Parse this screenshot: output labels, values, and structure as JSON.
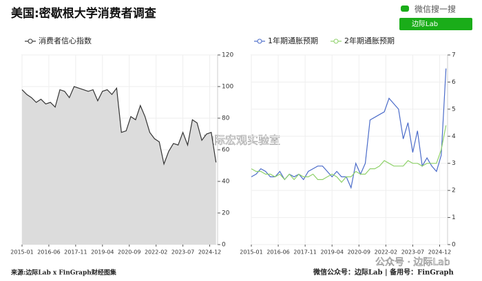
{
  "header": {
    "title": "美国:密歇根大学消费者调查",
    "search_brand": "微信搜一搜",
    "search_box": "边际Lab"
  },
  "chart_data": [
    {
      "type": "area",
      "series": [
        {
          "name": "消费者信心指数",
          "color": "#333333",
          "fill": "#dcdcdc",
          "x": [
            "2015-01",
            "2015-04",
            "2015-07",
            "2015-10",
            "2016-01",
            "2016-04",
            "2016-07",
            "2016-10",
            "2017-01",
            "2017-04",
            "2017-07",
            "2017-10",
            "2018-01",
            "2018-04",
            "2018-07",
            "2018-10",
            "2019-01",
            "2019-04",
            "2019-07",
            "2019-10",
            "2020-01",
            "2020-04",
            "2020-07",
            "2020-10",
            "2021-01",
            "2021-04",
            "2021-07",
            "2021-10",
            "2022-01",
            "2022-04",
            "2022-07",
            "2022-10",
            "2023-01",
            "2023-04",
            "2023-07",
            "2023-10",
            "2024-01",
            "2024-04",
            "2024-07",
            "2024-10",
            "2025-01",
            "2025-04"
          ],
          "values": [
            98,
            95,
            93,
            90,
            92,
            89,
            90,
            87,
            98,
            97,
            93,
            100,
            99,
            98,
            97,
            98,
            91,
            97,
            98,
            95,
            99,
            71,
            72,
            81,
            79,
            88,
            81,
            71,
            67,
            65,
            51,
            59,
            64,
            63,
            71,
            63,
            79,
            77,
            66,
            70,
            71,
            52
          ]
        }
      ],
      "xlim": [
        "2015-01",
        "2025-05"
      ],
      "xticks": [
        "2015-01",
        "2016-06",
        "2017-11",
        "2019-04",
        "2020-09",
        "2022-02",
        "2023-07",
        "2024-12"
      ],
      "ylim": [
        0,
        120
      ],
      "yticks": [
        0,
        20,
        40,
        60,
        80,
        100,
        120
      ],
      "grid": true
    },
    {
      "type": "line",
      "series": [
        {
          "name": "1年期通胀预期",
          "color": "#4a6bc9",
          "x": [
            "2015-01",
            "2015-04",
            "2015-07",
            "2015-10",
            "2016-01",
            "2016-04",
            "2016-07",
            "2016-10",
            "2017-01",
            "2017-04",
            "2017-07",
            "2017-10",
            "2018-01",
            "2018-04",
            "2018-07",
            "2018-10",
            "2019-01",
            "2019-04",
            "2019-07",
            "2019-10",
            "2020-01",
            "2020-04",
            "2020-07",
            "2020-10",
            "2021-01",
            "2021-04",
            "2021-07",
            "2021-10",
            "2022-01",
            "2022-04",
            "2022-07",
            "2022-10",
            "2023-01",
            "2023-04",
            "2023-07",
            "2023-10",
            "2024-01",
            "2024-04",
            "2024-07",
            "2024-10",
            "2025-01",
            "2025-04"
          ],
          "values": [
            2.5,
            2.6,
            2.8,
            2.7,
            2.5,
            2.5,
            2.7,
            2.4,
            2.6,
            2.5,
            2.6,
            2.4,
            2.7,
            2.8,
            2.9,
            2.9,
            2.7,
            2.5,
            2.7,
            2.5,
            2.5,
            2.1,
            3.0,
            2.6,
            3.0,
            4.6,
            4.7,
            4.8,
            4.9,
            5.4,
            5.2,
            5.0,
            3.9,
            4.5,
            3.4,
            4.2,
            2.9,
            3.2,
            2.9,
            2.7,
            3.3,
            6.5
          ]
        },
        {
          "name": "2年期通胀预期",
          "color": "#8fd16a",
          "x": [
            "2015-01",
            "2015-04",
            "2015-07",
            "2015-10",
            "2016-01",
            "2016-04",
            "2016-07",
            "2016-10",
            "2017-01",
            "2017-04",
            "2017-07",
            "2017-10",
            "2018-01",
            "2018-04",
            "2018-07",
            "2018-10",
            "2019-01",
            "2019-04",
            "2019-07",
            "2019-10",
            "2020-01",
            "2020-04",
            "2020-07",
            "2020-10",
            "2021-01",
            "2021-04",
            "2021-07",
            "2021-10",
            "2022-01",
            "2022-04",
            "2022-07",
            "2022-10",
            "2023-01",
            "2023-04",
            "2023-07",
            "2023-10",
            "2024-01",
            "2024-04",
            "2024-07",
            "2024-10",
            "2025-01",
            "2025-04"
          ],
          "values": [
            2.8,
            2.7,
            2.7,
            2.6,
            2.6,
            2.5,
            2.6,
            2.4,
            2.6,
            2.4,
            2.6,
            2.5,
            2.5,
            2.6,
            2.4,
            2.4,
            2.5,
            2.6,
            2.5,
            2.3,
            2.5,
            2.5,
            2.7,
            2.6,
            2.6,
            2.8,
            2.8,
            2.9,
            3.1,
            3.0,
            2.9,
            2.9,
            2.9,
            3.1,
            3.0,
            3.0,
            2.9,
            3.0,
            3.0,
            3.0,
            3.5,
            4.4
          ]
        }
      ],
      "xlim": [
        "2015-01",
        "2025-05"
      ],
      "xticks": [
        "2015-01",
        "2016-06",
        "2017-11",
        "2019-04",
        "2020-09",
        "2022-02",
        "2023-07",
        "2024-12"
      ],
      "ylim": [
        0,
        7
      ],
      "yticks": [
        0,
        1,
        2,
        3,
        4,
        5,
        6,
        7
      ],
      "grid": true
    }
  ],
  "footer": {
    "source": "来源:边际Lab x FinGraph财经图集",
    "wechat": "微信公众号：边际Lab  |  备用号：FinGraph",
    "watermark": "边际宏观实验室",
    "watermark2": "公众号 · 边际Lab"
  }
}
